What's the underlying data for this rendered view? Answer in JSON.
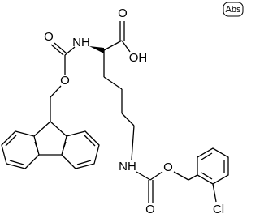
{
  "badge": "Abs",
  "atoms": {
    "acid_o": "O",
    "acid_oh": "OH",
    "alpha_nh": "NH",
    "fmoc_o_carbonyl": "O",
    "fmoc_o_ester": "O",
    "eps_nh": "NH",
    "cbz_o_ester": "O",
    "cbz_o_carbonyl": "O",
    "cl": "Cl"
  }
}
